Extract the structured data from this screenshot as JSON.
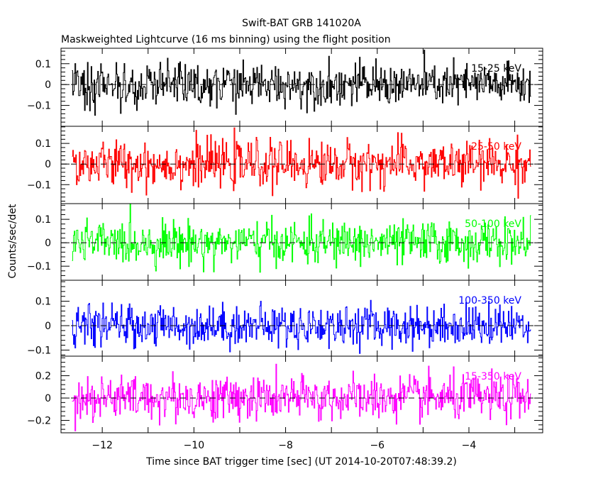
{
  "chart_data": {
    "type": "line",
    "title": "Swift-BAT GRB 141020A",
    "subtitle": "Maskweighted Lightcurve (16 ms binning) using the flight position",
    "xlabel": "Time since BAT trigger time [sec] (UT 2014-10-20T07:48:39.2)",
    "ylabel": "Counts/sec/det",
    "xlim": [
      -12.9,
      -2.39
    ],
    "x_data_range": [
      -12.66,
      -2.65
    ],
    "bin_size_sec": 0.016,
    "xticks": [
      -12,
      -10,
      -8,
      -6,
      -4
    ],
    "xtick_labels": [
      "−12",
      "−10",
      "−8",
      "−6",
      "−4"
    ],
    "grid": false,
    "panels": [
      {
        "name": "15-25 keV",
        "color": "#000000",
        "ylim": [
          -0.2,
          0.174
        ],
        "yticks": [
          -0.1,
          0,
          0.1
        ],
        "ytick_labels": [
          "−0.1",
          "0",
          "0.1"
        ],
        "noise_level": 0.05
      },
      {
        "name": "25-50 keV",
        "color": "#ff0000",
        "ylim": [
          -0.192,
          0.183
        ],
        "yticks": [
          -0.1,
          0,
          0.1
        ],
        "ytick_labels": [
          "−0.1",
          "0",
          "0.1"
        ],
        "noise_level": 0.055
      },
      {
        "name": "50-100 keV",
        "color": "#00ff00",
        "ylim": [
          -0.16,
          0.167
        ],
        "yticks": [
          -0.1,
          0,
          0.1
        ],
        "ytick_labels": [
          "−0.1",
          "0",
          "0.1"
        ],
        "noise_level": 0.045
      },
      {
        "name": "100-350 keV",
        "color": "#0000ff",
        "ylim": [
          -0.125,
          0.186
        ],
        "yticks": [
          -0.1,
          0,
          0.1
        ],
        "ytick_labels": [
          "−0.1",
          "0",
          "0.1"
        ],
        "noise_level": 0.042
      },
      {
        "name": "15-350 keV",
        "color": "#ff00ff",
        "ylim": [
          -0.311,
          0.375
        ],
        "yticks": [
          -0.2,
          0,
          0.2
        ],
        "ytick_labels": [
          "−0.2",
          "0",
          "0.2"
        ],
        "noise_level": 0.1
      }
    ]
  }
}
